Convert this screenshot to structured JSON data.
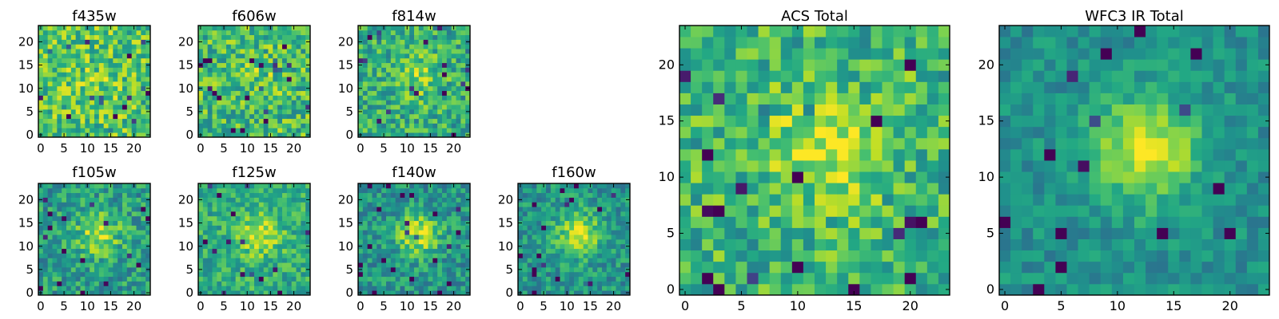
{
  "chart_data": [
    {
      "type": "heatmap",
      "title": "f435w",
      "colormap": "viridis",
      "grid": 24,
      "center_peak": 0.05,
      "noise": 0.24,
      "base": 0.72,
      "seed": 11,
      "xticks": [
        "0",
        "5",
        "10",
        "15",
        "20"
      ],
      "yticks": [
        "0",
        "5",
        "10",
        "15",
        "20"
      ]
    },
    {
      "type": "heatmap",
      "title": "f606w",
      "colormap": "viridis",
      "grid": 24,
      "center_peak": 0.08,
      "noise": 0.24,
      "base": 0.68,
      "seed": 23,
      "xticks": [
        "0",
        "5",
        "10",
        "15",
        "20"
      ],
      "yticks": [
        "0",
        "5",
        "10",
        "15",
        "20"
      ]
    },
    {
      "type": "heatmap",
      "title": "f814w",
      "colormap": "viridis",
      "grid": 24,
      "center_peak": 0.22,
      "noise": 0.22,
      "base": 0.62,
      "seed": 37,
      "xticks": [
        "0",
        "5",
        "10",
        "15",
        "20"
      ],
      "yticks": [
        "0",
        "5",
        "10",
        "15",
        "20"
      ]
    },
    {
      "type": "heatmap",
      "title": "f105w",
      "colormap": "viridis",
      "grid": 24,
      "center_peak": 0.32,
      "noise": 0.2,
      "base": 0.55,
      "seed": 41,
      "xticks": [
        "0",
        "5",
        "10",
        "15",
        "20"
      ],
      "yticks": [
        "0",
        "5",
        "10",
        "15",
        "20"
      ]
    },
    {
      "type": "heatmap",
      "title": "f125w",
      "colormap": "viridis",
      "grid": 24,
      "center_peak": 0.3,
      "noise": 0.18,
      "base": 0.62,
      "seed": 53,
      "xticks": [
        "0",
        "5",
        "10",
        "15",
        "20"
      ],
      "yticks": [
        "0",
        "5",
        "10",
        "15",
        "20"
      ]
    },
    {
      "type": "heatmap",
      "title": "f140w",
      "colormap": "viridis",
      "grid": 24,
      "center_peak": 0.38,
      "noise": 0.18,
      "base": 0.52,
      "seed": 67,
      "xticks": [
        "0",
        "5",
        "10",
        "15",
        "20"
      ],
      "yticks": [
        "0",
        "5",
        "10",
        "15",
        "20"
      ]
    },
    {
      "type": "heatmap",
      "title": "f160w",
      "colormap": "viridis",
      "grid": 24,
      "center_peak": 0.4,
      "noise": 0.17,
      "base": 0.52,
      "seed": 79,
      "xticks": [
        "0",
        "5",
        "10",
        "15",
        "20"
      ],
      "yticks": [
        "0",
        "5",
        "10",
        "15",
        "20"
      ]
    },
    {
      "type": "heatmap",
      "title": "ACS Total",
      "colormap": "viridis",
      "grid": 24,
      "center_peak": 0.28,
      "noise": 0.22,
      "base": 0.66,
      "seed": 91,
      "xticks": [
        "0",
        "5",
        "10",
        "15",
        "20"
      ],
      "yticks": [
        "0",
        "5",
        "10",
        "15",
        "20"
      ]
    },
    {
      "type": "heatmap",
      "title": "WFC3 IR Total",
      "colormap": "viridis",
      "grid": 24,
      "center_peak": 0.45,
      "noise": 0.12,
      "base": 0.5,
      "seed": 103,
      "xticks": [
        "0",
        "5",
        "10",
        "15",
        "20"
      ],
      "yticks": [
        "0",
        "5",
        "10",
        "15",
        "20"
      ]
    }
  ]
}
